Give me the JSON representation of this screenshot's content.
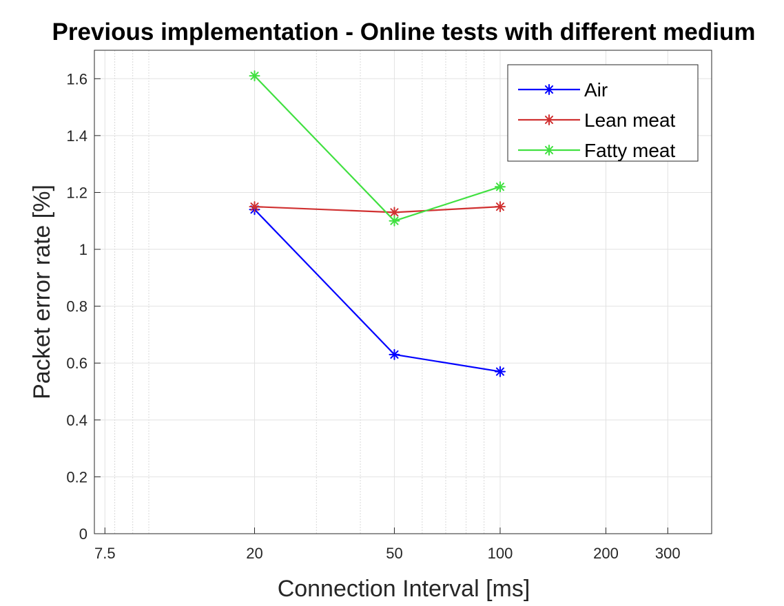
{
  "chart_data": {
    "type": "line",
    "title": "Previous implementation - Online tests with different medium",
    "xlabel": "Connection Interval [ms]",
    "ylabel": "Packet error rate [%]",
    "x_scale": "log",
    "xlim": [
      7,
      400
    ],
    "ylim": [
      0,
      1.7
    ],
    "x_ticks": [
      7.5,
      20,
      50,
      100,
      200,
      300
    ],
    "x_tick_labels": [
      "7.5",
      "20",
      "50",
      "100",
      "200",
      "300"
    ],
    "y_ticks": [
      0,
      0.2,
      0.4,
      0.6,
      0.8,
      1,
      1.2,
      1.4,
      1.6
    ],
    "y_tick_labels": [
      "0",
      "0.2",
      "0.4",
      "0.6",
      "0.8",
      "1",
      "1.2",
      "1.4",
      "1.6"
    ],
    "grid": true,
    "minor_grid": true,
    "legend_position": "top-right",
    "marker": "asterisk",
    "x": [
      20,
      50,
      100
    ],
    "series": [
      {
        "name": "Air",
        "values": [
          1.14,
          0.63,
          0.57
        ],
        "color": "#0000ff"
      },
      {
        "name": "Lean meat",
        "values": [
          1.15,
          1.13,
          1.15
        ],
        "color": "#d03030"
      },
      {
        "name": "Fatty meat",
        "values": [
          1.61,
          1.1,
          1.22
        ],
        "color": "#40e040"
      }
    ]
  }
}
